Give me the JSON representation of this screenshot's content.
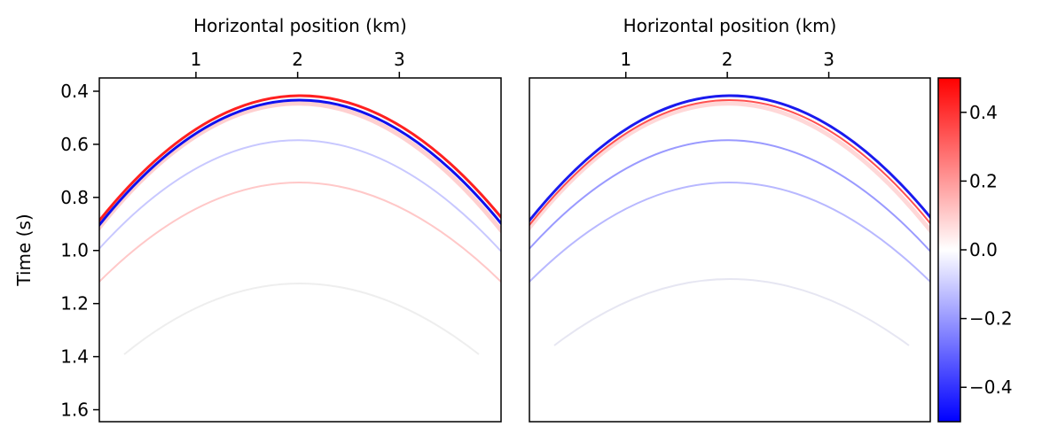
{
  "chart_data": [
    {
      "type": "image",
      "xlabel": "Horizontal position (km)",
      "ylabel": "Time (s)",
      "xlim": [
        0.05,
        4.0
      ],
      "xticks": [
        1,
        2,
        3
      ],
      "ylim": [
        0.35,
        1.645
      ],
      "yticks": [
        0.4,
        0.6,
        0.8,
        {
          "value": 1,
          "label": "1.0"
        },
        1.2,
        1.4,
        1.6
      ]
    },
    {
      "type": "image",
      "xlabel": "Horizontal position (km)",
      "xlim": [
        0.05,
        4.0
      ],
      "xticks": [
        1,
        2,
        3
      ],
      "ylim": [
        0.35,
        1.645
      ],
      "colorbar": {
        "lim": [
          -0.5,
          0.5
        ],
        "colors": [
          "#0000ff",
          "#ffffff",
          "#ff0000"
        ],
        "ticks": [
          {
            "value": -0.4,
            "label": "−0.4"
          },
          {
            "value": -0.2,
            "label": "−0.2"
          },
          {
            "value": 0,
            "label": "0.0"
          },
          0.2,
          0.4
        ]
      }
    }
  ]
}
